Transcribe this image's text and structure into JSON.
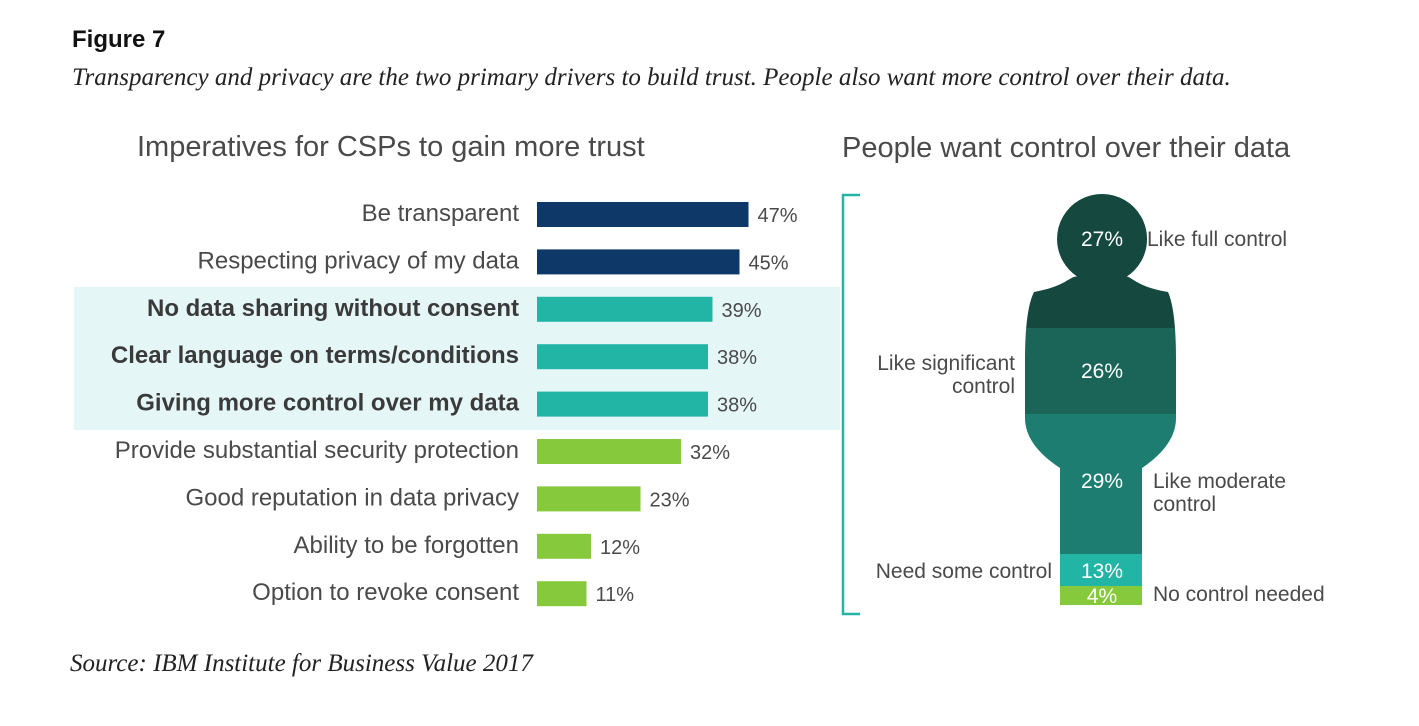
{
  "figure": {
    "label": "Figure 7",
    "caption": "Transparency and privacy are the two primary drivers to build trust. People also want more control over their data.",
    "source": "Source: IBM Institute for Business Value 2017"
  },
  "colors": {
    "navy": "#0d3868",
    "teal": "#22b5a6",
    "green": "#86c93c",
    "highlight_band": "#e5f6f6",
    "bracket": "#22b5a6",
    "figure_dark": "#15483e",
    "figure_mid": "#1b6558",
    "figure_teal": "#1d7d70",
    "figure_light": "#22b5a6",
    "figure_green": "#86c93c"
  },
  "chart_data": [
    {
      "type": "bar",
      "orientation": "horizontal",
      "title": "Imperatives for CSPs to gain more trust",
      "categories": [
        "Be transparent",
        "Respecting privacy of my data",
        "No data sharing without consent",
        "Clear language on terms/conditions",
        "Giving more control over my data",
        "Provide substantial security protection",
        "Good reputation in data privacy",
        "Ability to be forgotten",
        "Option to revoke consent"
      ],
      "values": [
        47,
        45,
        39,
        38,
        38,
        32,
        23,
        12,
        11
      ],
      "value_labels": [
        "47%",
        "45%",
        "39%",
        "38%",
        "38%",
        "32%",
        "23%",
        "12%",
        "11%"
      ],
      "groups": [
        "navy",
        "navy",
        "teal",
        "teal",
        "teal",
        "green",
        "green",
        "green",
        "green"
      ],
      "highlighted": [
        false,
        false,
        true,
        true,
        true,
        false,
        false,
        false,
        false
      ],
      "xlim": [
        0,
        100
      ]
    },
    {
      "type": "pictogram",
      "title": "People want control over their data",
      "segments": [
        {
          "label": "Like full control",
          "value": 27,
          "value_label": "27%",
          "color": "figure_dark"
        },
        {
          "label": "Like significant control",
          "value": 26,
          "value_label": "26%",
          "color": "figure_mid"
        },
        {
          "label": "Like moderate control",
          "value": 29,
          "value_label": "29%",
          "color": "figure_teal"
        },
        {
          "label": "Need some control",
          "value": 13,
          "value_label": "13%",
          "color": "figure_light"
        },
        {
          "label": "No control needed",
          "value": 4,
          "value_label": "4%",
          "color": "figure_green"
        }
      ]
    }
  ]
}
